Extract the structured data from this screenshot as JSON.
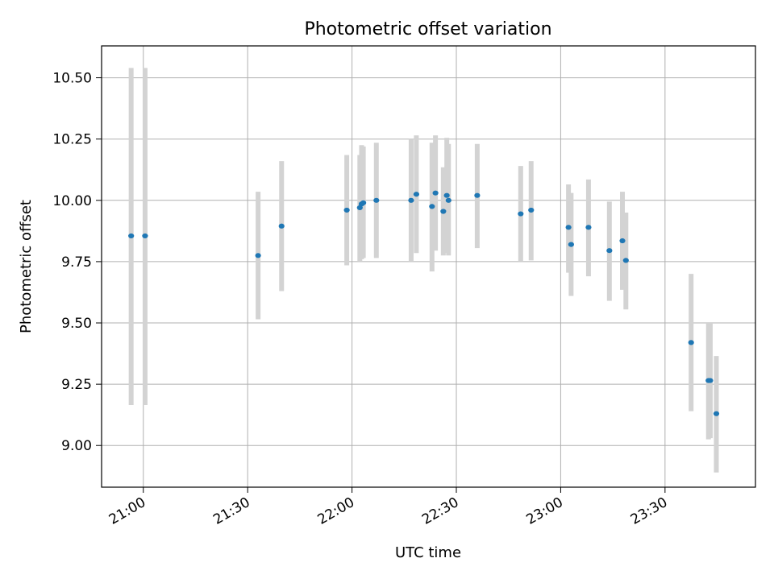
{
  "chart_data": {
    "type": "scatter",
    "title": "Photometric offset variation",
    "xlabel": "UTC time",
    "ylabel": "Photometric offset",
    "grid": true,
    "xlim": [
      "20:48",
      "23:56"
    ],
    "ylim": [
      8.83,
      10.63
    ],
    "x_ticks": [
      "21:00",
      "21:30",
      "22:00",
      "22:30",
      "23:00",
      "23:30"
    ],
    "y_ticks": [
      "9.00",
      "9.25",
      "9.50",
      "9.75",
      "10.00",
      "10.25",
      "10.50"
    ],
    "marker_color": "#1f77b4",
    "errorbar_color": "#d3d3d3",
    "points": [
      {
        "x": "20:56:30",
        "y": 9.855,
        "lo": 9.165,
        "hi": 10.54
      },
      {
        "x": "21:00:30",
        "y": 9.855,
        "lo": 9.165,
        "hi": 10.54
      },
      {
        "x": "21:33:00",
        "y": 9.775,
        "lo": 9.515,
        "hi": 10.035
      },
      {
        "x": "21:39:45",
        "y": 9.895,
        "lo": 9.63,
        "hi": 10.16
      },
      {
        "x": "21:58:30",
        "y": 9.96,
        "lo": 9.735,
        "hi": 10.185
      },
      {
        "x": "22:02:15",
        "y": 9.97,
        "lo": 9.75,
        "hi": 10.185
      },
      {
        "x": "22:02:45",
        "y": 9.985,
        "lo": 9.76,
        "hi": 10.225
      },
      {
        "x": "22:03:15",
        "y": 9.99,
        "lo": 9.765,
        "hi": 10.22
      },
      {
        "x": "22:07:00",
        "y": 10.0,
        "lo": 9.765,
        "hi": 10.235
      },
      {
        "x": "22:17:00",
        "y": 10.0,
        "lo": 9.75,
        "hi": 10.25
      },
      {
        "x": "22:18:30",
        "y": 10.025,
        "lo": 9.785,
        "hi": 10.265
      },
      {
        "x": "22:23:00",
        "y": 9.975,
        "lo": 9.71,
        "hi": 10.235
      },
      {
        "x": "22:24:00",
        "y": 10.03,
        "lo": 9.795,
        "hi": 10.265
      },
      {
        "x": "22:26:15",
        "y": 9.955,
        "lo": 9.775,
        "hi": 10.135
      },
      {
        "x": "22:27:15",
        "y": 10.02,
        "lo": 9.785,
        "hi": 10.255
      },
      {
        "x": "22:27:45",
        "y": 10.0,
        "lo": 9.775,
        "hi": 10.23
      },
      {
        "x": "22:36:00",
        "y": 10.02,
        "lo": 9.805,
        "hi": 10.23
      },
      {
        "x": "22:48:30",
        "y": 9.945,
        "lo": 9.75,
        "hi": 10.14
      },
      {
        "x": "22:51:30",
        "y": 9.96,
        "lo": 9.755,
        "hi": 10.16
      },
      {
        "x": "23:02:15",
        "y": 9.89,
        "lo": 9.705,
        "hi": 10.065
      },
      {
        "x": "23:03:00",
        "y": 9.82,
        "lo": 9.61,
        "hi": 10.03
      },
      {
        "x": "23:08:00",
        "y": 9.89,
        "lo": 9.69,
        "hi": 10.085
      },
      {
        "x": "23:14:00",
        "y": 9.795,
        "lo": 9.59,
        "hi": 9.995
      },
      {
        "x": "23:17:45",
        "y": 9.835,
        "lo": 9.635,
        "hi": 10.035
      },
      {
        "x": "23:18:45",
        "y": 9.755,
        "lo": 9.555,
        "hi": 9.95
      },
      {
        "x": "23:37:30",
        "y": 9.42,
        "lo": 9.14,
        "hi": 9.7
      },
      {
        "x": "23:42:30",
        "y": 9.265,
        "lo": 9.025,
        "hi": 9.5
      },
      {
        "x": "23:43:00",
        "y": 9.265,
        "lo": 9.03,
        "hi": 9.5
      },
      {
        "x": "23:44:45",
        "y": 9.13,
        "lo": 8.89,
        "hi": 9.365
      }
    ]
  }
}
